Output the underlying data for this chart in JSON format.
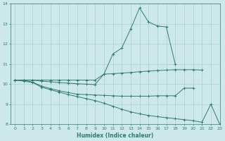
{
  "xlabel": "Humidex (Indice chaleur)",
  "x": [
    0,
    1,
    2,
    3,
    4,
    5,
    6,
    7,
    8,
    9,
    10,
    11,
    12,
    13,
    14,
    15,
    16,
    17,
    18,
    19,
    20,
    21,
    22,
    23
  ],
  "line_top": [
    10.2,
    10.2,
    10.2,
    10.2,
    10.2,
    10.2,
    10.2,
    10.2,
    10.2,
    10.2,
    10.5,
    11.5,
    11.8,
    12.75,
    13.8,
    13.1,
    12.9,
    12.85,
    11.0,
    null,
    null,
    null,
    null,
    null
  ],
  "line_mid_upper": [
    10.2,
    10.2,
    10.2,
    10.15,
    10.12,
    10.08,
    10.05,
    10.02,
    10.0,
    9.98,
    10.5,
    10.52,
    10.55,
    10.58,
    10.62,
    10.65,
    10.68,
    10.7,
    10.72,
    10.72,
    10.72,
    10.7,
    null,
    null
  ],
  "line_mid_lower": [
    10.2,
    10.2,
    10.1,
    9.9,
    9.78,
    9.67,
    9.58,
    9.5,
    9.48,
    9.46,
    9.44,
    9.42,
    9.4,
    9.4,
    9.4,
    9.4,
    9.42,
    9.42,
    9.42,
    9.8,
    9.8,
    null,
    null,
    null
  ],
  "line_bot": [
    10.2,
    10.15,
    10.08,
    9.85,
    9.72,
    9.6,
    9.48,
    9.38,
    9.28,
    9.18,
    9.05,
    8.9,
    8.75,
    8.62,
    8.52,
    8.44,
    8.38,
    8.33,
    8.28,
    8.23,
    8.18,
    8.1,
    9.0,
    8.0
  ],
  "ylim": [
    8,
    14
  ],
  "xlim": [
    -0.5,
    23
  ],
  "yticks": [
    8,
    9,
    10,
    11,
    12,
    13,
    14
  ],
  "xticks": [
    0,
    1,
    2,
    3,
    4,
    5,
    6,
    7,
    8,
    9,
    10,
    11,
    12,
    13,
    14,
    15,
    16,
    17,
    18,
    19,
    20,
    21,
    22,
    23
  ],
  "color": "#2d7d6e",
  "bg_color": "#cde8e8",
  "grid_color": "#aacfcf"
}
